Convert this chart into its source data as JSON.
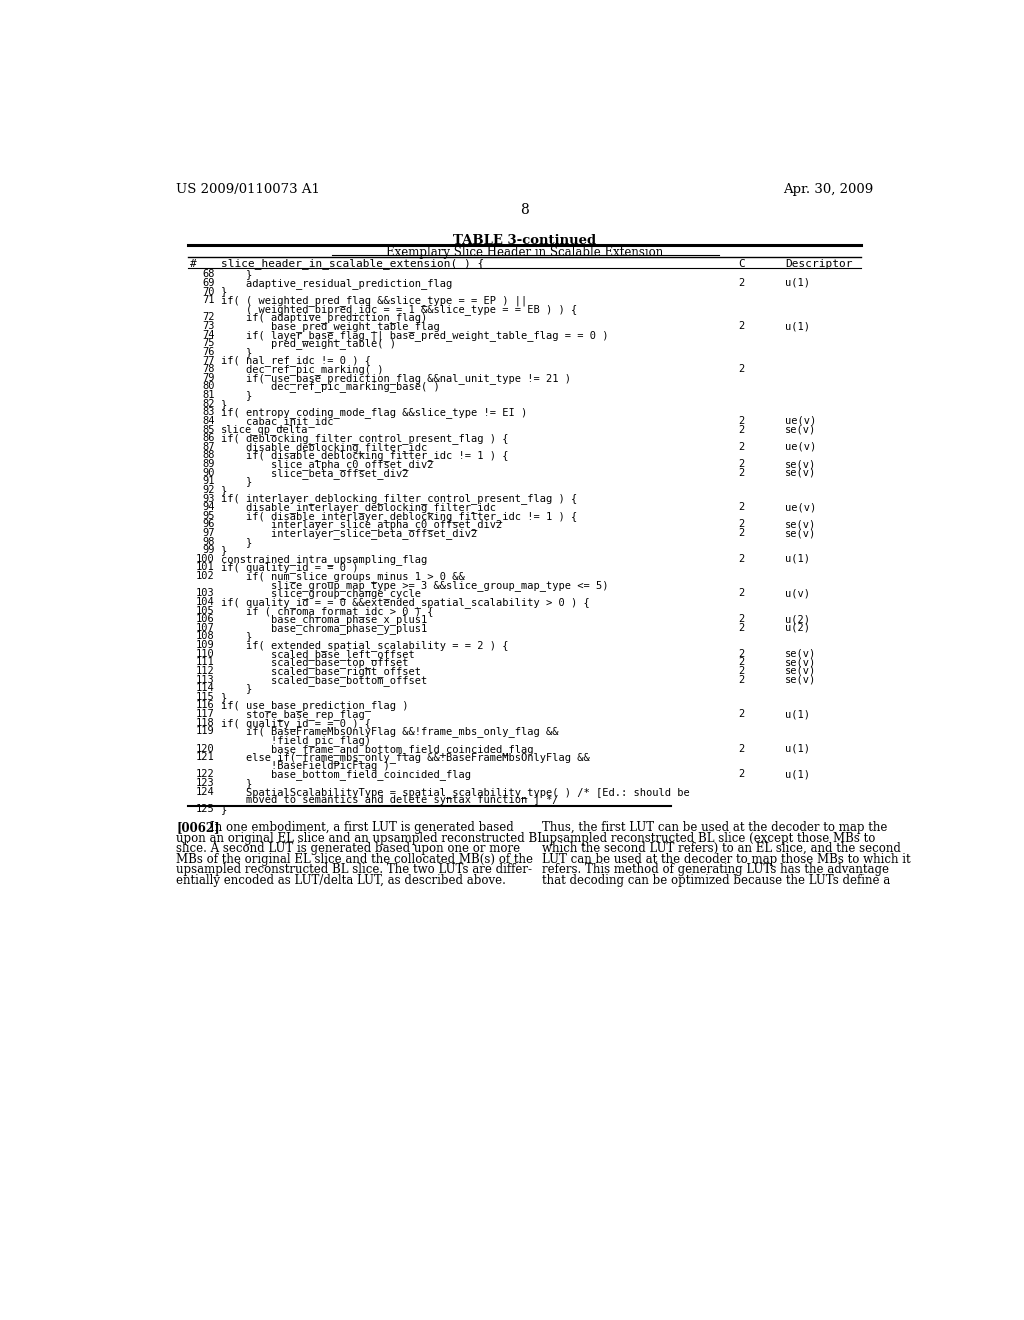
{
  "header_left": "US 2009/0110073 A1",
  "header_right": "Apr. 30, 2009",
  "page_number": "8",
  "table_title": "TABLE 3-continued",
  "table_subtitle": "Exemplary Slice Header in Scalable Extension",
  "col_hash": "#",
  "col_code": "slice_header_in_scalable_extension( ) {",
  "col_c": "C",
  "col_desc": "Descriptor",
  "rows": [
    [
      "68",
      "    }",
      "",
      ""
    ],
    [
      "69",
      "    adaptive_residual_prediction_flag",
      "2",
      "u(1)"
    ],
    [
      "70",
      "}",
      "",
      ""
    ],
    [
      "71",
      "if( ( weighted_pred_flag &&slice_type = = EP ) ||",
      "",
      ""
    ],
    [
      "",
      "    ( weighted_bipred_idc = = 1 &&slice_type = = EB ) ) {",
      "",
      ""
    ],
    [
      "72",
      "    if( adaptive_prediction_flag)",
      "",
      ""
    ],
    [
      "73",
      "        base_pred_weight_table_flag",
      "2",
      "u(1)"
    ],
    [
      "74",
      "    if( layer_base_flag || base_pred_weight_table_flag = = 0 )",
      "",
      ""
    ],
    [
      "75",
      "        pred_weight_table( )",
      "",
      ""
    ],
    [
      "76",
      "    }",
      "",
      ""
    ],
    [
      "77",
      "if( nal_ref_idc != 0 ) {",
      "",
      ""
    ],
    [
      "78",
      "    dec_ref_pic_marking( )",
      "2",
      ""
    ],
    [
      "79",
      "    if( use_base_prediction_flag &&nal_unit_type != 21 )",
      "",
      ""
    ],
    [
      "80",
      "        dec_ref_pic_marking_base( )",
      "",
      ""
    ],
    [
      "81",
      "    }",
      "",
      ""
    ],
    [
      "82",
      "}",
      "",
      ""
    ],
    [
      "83",
      "if( entropy_coding_mode_flag &&slice_type != EI )",
      "",
      ""
    ],
    [
      "84",
      "    cabac_init_idc",
      "2",
      "ue(v)"
    ],
    [
      "85",
      "slice_qp_delta",
      "2",
      "se(v)"
    ],
    [
      "86",
      "if( deblocking_filter_control_present_flag ) {",
      "",
      ""
    ],
    [
      "87",
      "    disable_deblocking_filter_idc",
      "2",
      "ue(v)"
    ],
    [
      "88",
      "    if( disable_deblocking_filter_idc != 1 ) {",
      "",
      ""
    ],
    [
      "89",
      "        slice_alpha_c0_offset_div2",
      "2",
      "se(v)"
    ],
    [
      "90",
      "        slice_beta_offset_div2",
      "2",
      "se(v)"
    ],
    [
      "91",
      "    }",
      "",
      ""
    ],
    [
      "92",
      "}",
      "",
      ""
    ],
    [
      "93",
      "if( interlayer_deblocking_filter_control_present_flag ) {",
      "",
      ""
    ],
    [
      "94",
      "    disable_interlayer_deblocking_filter_idc",
      "2",
      "ue(v)"
    ],
    [
      "95",
      "    if( disable_interlayer_deblocking_filter_idc != 1 ) {",
      "",
      ""
    ],
    [
      "96",
      "        interlayer_slice_alpha_c0_offset_div2",
      "2",
      "se(v)"
    ],
    [
      "97",
      "        interlayer_slice_beta_offset_div2",
      "2",
      "se(v)"
    ],
    [
      "98",
      "    }",
      "",
      ""
    ],
    [
      "99",
      "}",
      "",
      ""
    ],
    [
      "100",
      "constrained_intra_upsampling_flag",
      "2",
      "u(1)"
    ],
    [
      "101",
      "if( quality_id = = 0 )",
      "",
      ""
    ],
    [
      "102",
      "    if( num_slice_groups_minus 1 > 0 &&",
      "",
      ""
    ],
    [
      "",
      "        slice_group_map_type >= 3 &&slice_group_map_type <= 5)",
      "",
      ""
    ],
    [
      "103",
      "        slice_group_change_cycle",
      "2",
      "u(v)"
    ],
    [
      "104",
      "if( quality_id = = 0 &&extended_spatial_scalability > 0 ) {",
      "",
      ""
    ],
    [
      "105",
      "    if ( chroma_format_idc > 0 ) {",
      "",
      ""
    ],
    [
      "106",
      "        base_chroma_phase_x_plus1",
      "2",
      "u(2)"
    ],
    [
      "107",
      "        base_chroma_phase_y_plus1",
      "2",
      "u(2)"
    ],
    [
      "108",
      "    }",
      "",
      ""
    ],
    [
      "109",
      "    if( extended_spatial_scalability = = 2 ) {",
      "",
      ""
    ],
    [
      "110",
      "        scaled_base_left_offset",
      "2",
      "se(v)"
    ],
    [
      "111",
      "        scaled_base_top_offset",
      "2",
      "se(v)"
    ],
    [
      "112",
      "        scaled_base_right_offset",
      "2",
      "se(v)"
    ],
    [
      "113",
      "        scaled_base_bottom_offset",
      "2",
      "se(v)"
    ],
    [
      "114",
      "    }",
      "",
      ""
    ],
    [
      "115",
      "}",
      "",
      ""
    ],
    [
      "116",
      "if( use_base_prediction_flag )",
      "",
      ""
    ],
    [
      "117",
      "    store_base_rep_flag",
      "2",
      "u(1)"
    ],
    [
      "118",
      "if( quality_id = = 0 ) {",
      "",
      ""
    ],
    [
      "119",
      "    if( BaseFrameMbsOnlyFlag &&!frame_mbs_only_flag &&",
      "",
      ""
    ],
    [
      "",
      "        !field_pic_flag)",
      "",
      ""
    ],
    [
      "120",
      "        base_frame_and_bottom_field_coincided_flag",
      "2",
      "u(1)"
    ],
    [
      "121",
      "    else if( frame_mbs_only_flag &&!BaseFrameMbsOnlyFlag &&",
      "",
      ""
    ],
    [
      "",
      "        !BaseFieldPicFlag )",
      "",
      ""
    ],
    [
      "122",
      "        base_bottom_field_coincided_flag",
      "2",
      "u(1)"
    ],
    [
      "123",
      "    }",
      "",
      ""
    ],
    [
      "124",
      "    SpatialScalabilityType = spatial_scalability_type( ) /* [Ed.: should be",
      "",
      ""
    ],
    [
      "",
      "    moved to semantics and delete syntax function ] */",
      "",
      ""
    ],
    [
      "125",
      "}",
      "",
      ""
    ]
  ],
  "para_label": "[0062]",
  "para_left_lines": [
    "In one embodiment, a first LUT is generated based",
    "upon an original EL slice and an upsampled reconstructed BL",
    "slice. A second LUT is generated based upon one or more",
    "MBs of the original EL slice and the collocated MB(s) of the",
    "upsampled reconstructed BL slice. The two LUTs are differ-",
    "entially encoded as LUT/delta LUT, as described above."
  ],
  "para_right_lines": [
    "Thus, the first LUT can be used at the decoder to map the",
    "upsampled reconstructed BL slice (except those MBs to",
    "which the second LUT refers) to an EL slice, and the second",
    "LUT can be used at the decoder to map those MBs to which it",
    "refers. This method of generating LUTs has the advantage",
    "that decoding can be optimized because the LUTs define a"
  ],
  "bg_color": "#ffffff",
  "text_color": "#000000"
}
